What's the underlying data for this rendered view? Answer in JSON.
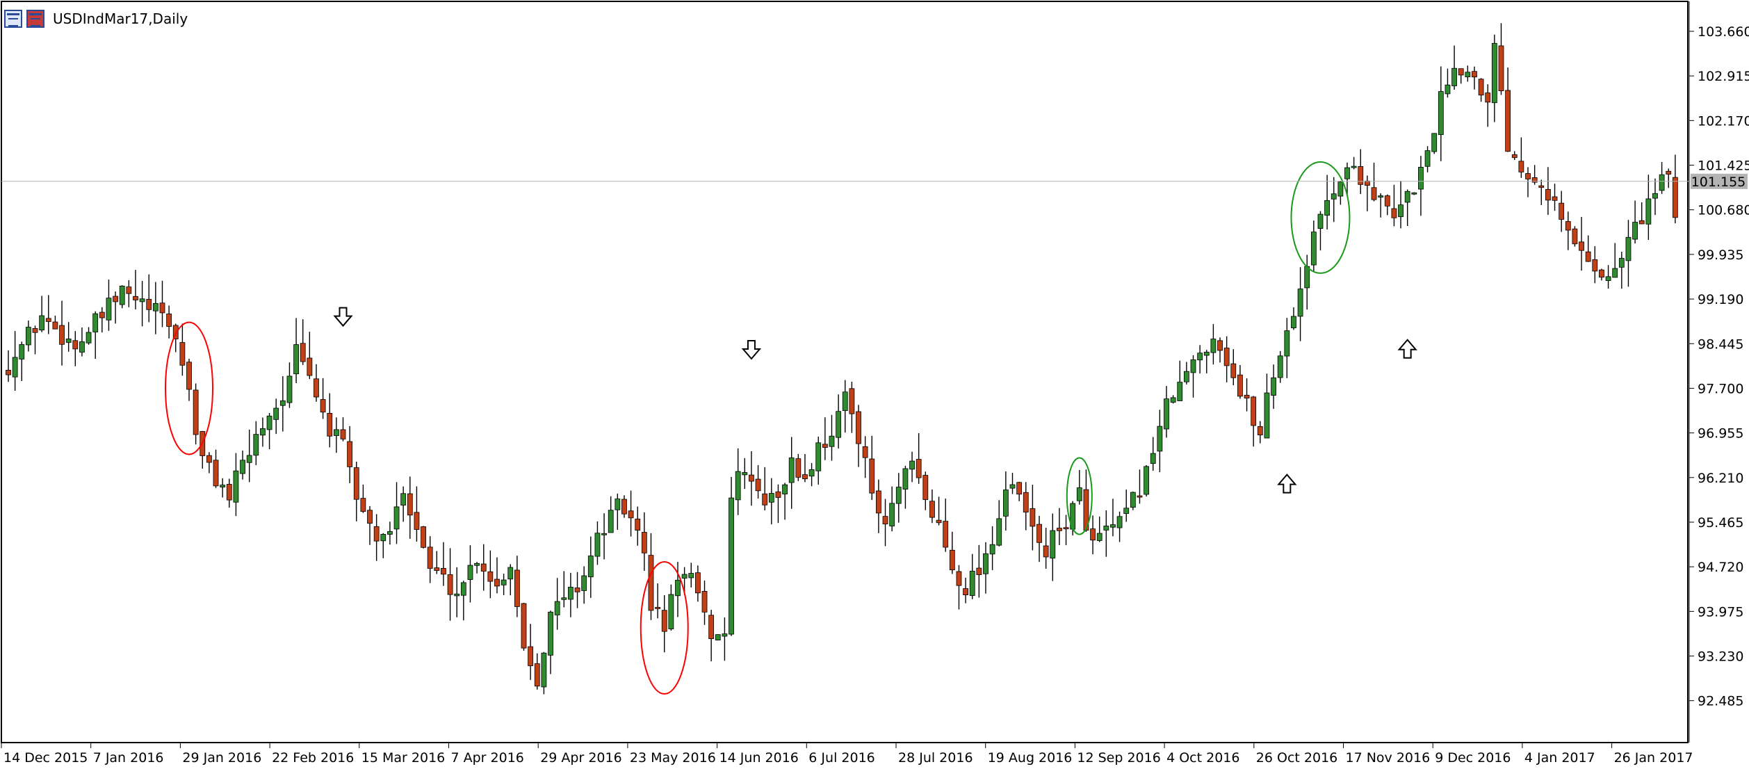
{
  "window": {
    "title": "USDIndMar17,Daily",
    "icons": [
      "chart-window-icon",
      "chart-window-icon-alt"
    ]
  },
  "current_price": "101.155",
  "colors": {
    "bull": "#2e8b2e",
    "bear": "#c24016",
    "wick": "#000000",
    "price_line": "#b4b4b4",
    "price_label_bg": "#b4b4b4",
    "red_ellipse": "#ff0000",
    "green_ellipse": "#1a9a1a"
  },
  "chart_data": {
    "type": "candlestick",
    "y_ticks": [
      "103.660",
      "102.915",
      "102.170",
      "101.425",
      "100.680",
      "99.935",
      "99.190",
      "98.445",
      "97.700",
      "96.955",
      "96.210",
      "95.465",
      "94.720",
      "93.975",
      "93.230",
      "92.485"
    ],
    "ylim": [
      92.0,
      104.0
    ],
    "x_ticks": [
      "14 Dec 2015",
      "7 Jan 2016",
      "29 Jan 2016",
      "22 Feb 2016",
      "15 Mar 2016",
      "7 Apr 2016",
      "29 Apr 2016",
      "23 May 2016",
      "14 Jun 2016",
      "6 Jul 2016",
      "28 Jul 2016",
      "19 Aug 2016",
      "12 Sep 2016",
      "4 Oct 2016",
      "26 Oct 2016",
      "17 Nov 2016",
      "9 Dec 2016",
      "4 Jan 2017",
      "26 Jan 2017"
    ],
    "close_path": [
      [
        0,
        98.1
      ],
      [
        5,
        98.9
      ],
      [
        10,
        98.4
      ],
      [
        14,
        98.9
      ],
      [
        17,
        99.3
      ],
      [
        20,
        99.1
      ],
      [
        24,
        98.8
      ],
      [
        25,
        98.5
      ],
      [
        27,
        97.7
      ],
      [
        28,
        97.0
      ],
      [
        29,
        96.5
      ],
      [
        31,
        96.2
      ],
      [
        33,
        95.9
      ],
      [
        35,
        96.4
      ],
      [
        37,
        96.9
      ],
      [
        39,
        97.3
      ],
      [
        40,
        97.4
      ],
      [
        42,
        97.8
      ],
      [
        43,
        98.3
      ],
      [
        44,
        98.1
      ],
      [
        46,
        97.6
      ],
      [
        48,
        97.0
      ],
      [
        50,
        96.7
      ],
      [
        52,
        95.9
      ],
      [
        54,
        95.4
      ],
      [
        56,
        95.1
      ],
      [
        58,
        95.6
      ],
      [
        59,
        96.1
      ],
      [
        61,
        95.4
      ],
      [
        63,
        94.7
      ],
      [
        65,
        94.5
      ],
      [
        67,
        94.3
      ],
      [
        70,
        94.9
      ],
      [
        73,
        94.4
      ],
      [
        75,
        94.8
      ],
      [
        77,
        93.4
      ],
      [
        79,
        92.9
      ],
      [
        81,
        93.9
      ],
      [
        83,
        94.2
      ],
      [
        85,
        94.4
      ],
      [
        87,
        94.9
      ],
      [
        89,
        95.4
      ],
      [
        91,
        95.7
      ],
      [
        93,
        95.6
      ],
      [
        95,
        94.9
      ],
      [
        96,
        94.1
      ],
      [
        98,
        93.7
      ],
      [
        100,
        94.6
      ],
      [
        102,
        94.5
      ],
      [
        104,
        93.8
      ],
      [
        106,
        93.5
      ],
      [
        107,
        93.7
      ],
      [
        108,
        95.9
      ],
      [
        110,
        96.4
      ],
      [
        112,
        95.9
      ],
      [
        114,
        95.8
      ],
      [
        117,
        96.4
      ],
      [
        119,
        96.2
      ],
      [
        121,
        96.7
      ],
      [
        123,
        97.0
      ],
      [
        125,
        97.5
      ],
      [
        126,
        97.3
      ],
      [
        128,
        96.6
      ],
      [
        129,
        95.8
      ],
      [
        131,
        95.4
      ],
      [
        133,
        96.0
      ],
      [
        135,
        96.4
      ],
      [
        137,
        95.8
      ],
      [
        139,
        95.4
      ],
      [
        141,
        94.7
      ],
      [
        143,
        94.4
      ],
      [
        145,
        94.7
      ],
      [
        147,
        95.2
      ],
      [
        149,
        96.0
      ],
      [
        151,
        95.9
      ],
      [
        153,
        95.3
      ],
      [
        155,
        95.0
      ],
      [
        157,
        95.3
      ],
      [
        160,
        95.9
      ],
      [
        162,
        95.1
      ],
      [
        164,
        95.3
      ],
      [
        166,
        95.4
      ],
      [
        168,
        95.8
      ],
      [
        170,
        96.3
      ],
      [
        172,
        97.1
      ],
      [
        174,
        97.6
      ],
      [
        176,
        97.9
      ],
      [
        178,
        98.3
      ],
      [
        180,
        98.6
      ],
      [
        182,
        98.2
      ],
      [
        184,
        97.6
      ],
      [
        186,
        97.2
      ],
      [
        187,
        96.9
      ],
      [
        188,
        97.6
      ],
      [
        190,
        98.3
      ],
      [
        192,
        99.0
      ],
      [
        193,
        99.4
      ],
      [
        195,
        100.2
      ],
      [
        197,
        100.9
      ],
      [
        199,
        101.2
      ],
      [
        201,
        101.4
      ],
      [
        203,
        101.1
      ],
      [
        205,
        100.8
      ],
      [
        207,
        100.5
      ],
      [
        209,
        100.9
      ],
      [
        211,
        101.3
      ],
      [
        213,
        102.1
      ],
      [
        215,
        102.9
      ],
      [
        217,
        103.1
      ],
      [
        219,
        102.9
      ],
      [
        221,
        102.6
      ],
      [
        222,
        103.4
      ],
      [
        223,
        102.7
      ],
      [
        224,
        101.8
      ],
      [
        226,
        101.4
      ],
      [
        228,
        101.3
      ],
      [
        230,
        101.0
      ],
      [
        232,
        100.5
      ],
      [
        234,
        100.1
      ],
      [
        236,
        99.9
      ],
      [
        238,
        99.6
      ],
      [
        239,
        99.5
      ],
      [
        241,
        99.9
      ],
      [
        243,
        100.4
      ],
      [
        245,
        100.8
      ],
      [
        247,
        101.1
      ],
      [
        248,
        101.3
      ],
      [
        249,
        100.6
      ]
    ],
    "annotations": [
      {
        "kind": "ellipse",
        "color": "red",
        "index": 27
      },
      {
        "kind": "ellipse",
        "color": "red",
        "index": 98
      },
      {
        "kind": "ellipse",
        "color": "green",
        "index": 160
      },
      {
        "kind": "ellipse",
        "color": "green",
        "index": 196
      },
      {
        "kind": "arrow",
        "direction": "down",
        "index": 50
      },
      {
        "kind": "arrow",
        "direction": "down",
        "index": 111
      },
      {
        "kind": "arrow",
        "direction": "up",
        "index": 191
      },
      {
        "kind": "arrow",
        "direction": "up",
        "index": 209
      }
    ]
  }
}
